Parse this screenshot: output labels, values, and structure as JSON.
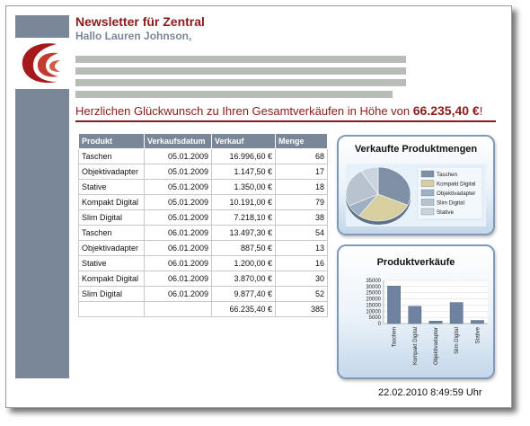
{
  "header": {
    "title": "Newsletter für Zentral",
    "greeting": "Hallo Lauren Johnson,"
  },
  "congrats": {
    "text": "Herzlichen Glückwunsch zu Ihren Gesamtverkäufen in Höhe von ",
    "amount": "66.235,40 €",
    "suffix": "!"
  },
  "table": {
    "headers": [
      "Produkt",
      "Verkaufsdatum",
      "Verkauf",
      "Menge"
    ],
    "rows": [
      [
        "Taschen",
        "05.01.2009",
        "16.996,60 €",
        "68"
      ],
      [
        "Objektivadapter",
        "05.01.2009",
        "1.147,50 €",
        "17"
      ],
      [
        "Stative",
        "05.01.2009",
        "1.350,00 €",
        "18"
      ],
      [
        "Kompakt Digital",
        "05.01.2009",
        "10.191,00 €",
        "79"
      ],
      [
        "Slim Digital",
        "05.01.2009",
        "7.218,10 €",
        "38"
      ],
      [
        "Taschen",
        "06.01.2009",
        "13.497,30 €",
        "54"
      ],
      [
        "Objektivadapter",
        "06.01.2009",
        "887,50 €",
        "13"
      ],
      [
        "Stative",
        "06.01.2009",
        "1.200,00 €",
        "16"
      ],
      [
        "Kompakt Digital",
        "06.01.2009",
        "3.870,00 €",
        "30"
      ],
      [
        "Slim Digital",
        "06.01.2009",
        "9.877,40 €",
        "52"
      ]
    ],
    "total": [
      "",
      "",
      "66.235,40 €",
      "385"
    ]
  },
  "colors": {
    "brand": "#8b1a1a",
    "sidebar": "#7a8798",
    "panel_border": "#8099b6"
  },
  "chart_data": [
    {
      "type": "pie",
      "title": "Verkaufte Produktmengen",
      "legend_position": "right",
      "categories": [
        "Taschen",
        "Kompakt Digital",
        "Objektivadapter",
        "Slim Digital",
        "Stative"
      ],
      "values": [
        122,
        109,
        30,
        90,
        34
      ],
      "colors": [
        "#7e8fa6",
        "#d7cf9f",
        "#9eb0c3",
        "#b8c3cf",
        "#c9d4df"
      ]
    },
    {
      "type": "bar",
      "title": "Produktverkäufe",
      "categories": [
        "Taschen",
        "Kompakt Digital",
        "Objektivadapter",
        "Slim Digital",
        "Stative"
      ],
      "values": [
        30494,
        14061,
        2035,
        17096,
        2550
      ],
      "yticks": [
        "35000",
        "30000",
        "25000",
        "20000",
        "15000",
        "10000",
        "5000",
        "0"
      ],
      "ylim": [
        0,
        35000
      ],
      "grid": true
    }
  ],
  "footer": {
    "timestamp": "22.02.2010 8:49:59 Uhr"
  }
}
